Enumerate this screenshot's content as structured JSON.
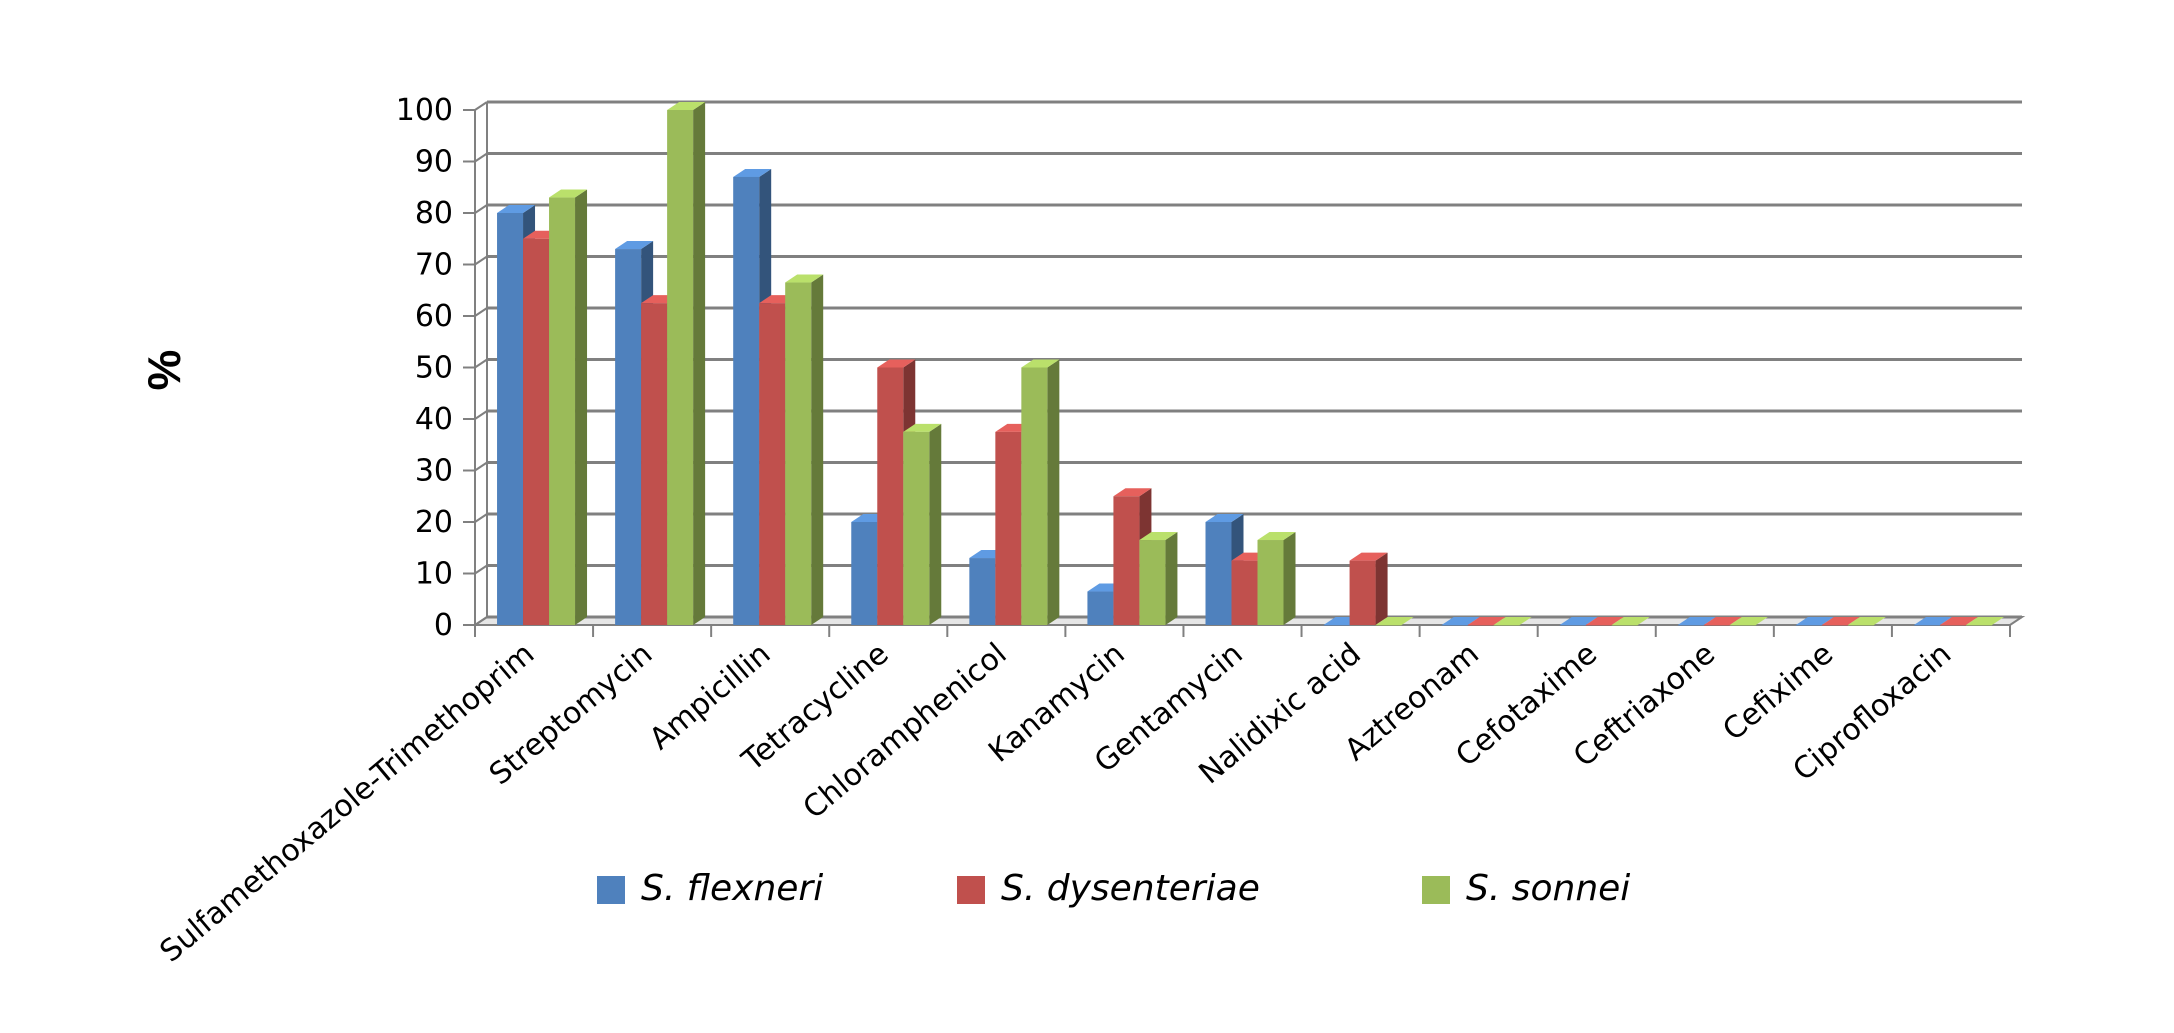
{
  "chart_data": {
    "type": "bar",
    "ylabel": "%",
    "xlabel": "",
    "ylim": [
      0,
      100
    ],
    "yticks": [
      0,
      10,
      20,
      30,
      40,
      50,
      60,
      70,
      80,
      90,
      100
    ],
    "grid": true,
    "style": "3d-clustered-column",
    "legend_position": "bottom",
    "categories": [
      "Sulfamethoxazole-Trimethoprim",
      "Streptomycin",
      "Ampicillin",
      "Tetracycline",
      "Chloramphenicol",
      "Kanamycin",
      "Gentamycin",
      "Nalidixic acid",
      "Aztreonam",
      "Cefotaxime",
      "Ceftriaxone",
      "Cefixime",
      "Ciprofloxacin"
    ],
    "series": [
      {
        "name": "S. flexneri",
        "color": "#4F81BD",
        "values": [
          80,
          73,
          87,
          20,
          13,
          6.5,
          20,
          0,
          0,
          0,
          0,
          0,
          0
        ]
      },
      {
        "name": "S. dysenteriae",
        "color": "#C0504D",
        "values": [
          75,
          62.5,
          62.5,
          50,
          37.5,
          25,
          12.5,
          12.5,
          0,
          0,
          0,
          0,
          0
        ]
      },
      {
        "name": "S. sonnei",
        "color": "#9BBB59",
        "values": [
          83,
          100,
          66.5,
          37.5,
          50,
          16.5,
          16.5,
          0,
          0,
          0,
          0,
          0,
          0
        ]
      }
    ]
  }
}
